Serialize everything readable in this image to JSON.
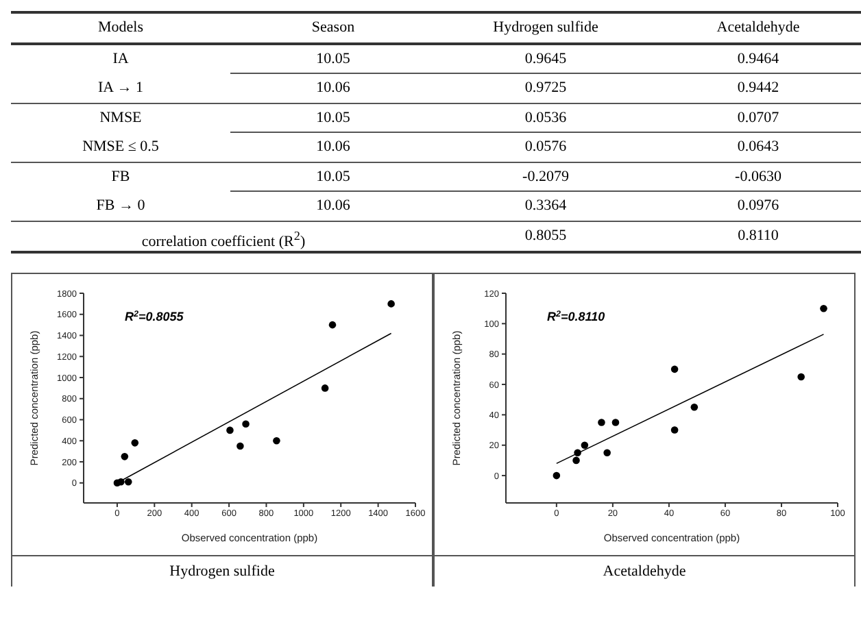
{
  "chart_data": [
    {
      "type": "other",
      "annotations": [
        "Models",
        "Season",
        "Hydrogen sulfide",
        "Acetaldehyde",
        "IA",
        "10.05",
        "0.9645",
        "0.9464",
        "IA → 1",
        "10.06",
        "0.9725",
        "0.9442",
        "NMSE",
        "10.05",
        "0.0536",
        "0.0707",
        "NMSE ≤ 0.5",
        "10.06",
        "0.0576",
        "0.0643",
        "FB",
        "10.05",
        "-0.2079",
        "-0.0630",
        "FB → 0",
        "10.06",
        "0.3364",
        "0.0976",
        "correlation coefficient (R$^{2}$)",
        "0.8055",
        "0.8110"
      ]
    },
    {
      "type": "scatter",
      "title": "Hydrogen sulfide",
      "xlabel": "Observed concentration (ppb)",
      "ylabel": "Predicted concentration (ppb)",
      "annotations": [
        "R$^{2}$=0.8055"
      ],
      "xlim": [
        -180,
        1600
      ],
      "xticks": [
        0,
        200,
        400,
        600,
        800,
        1000,
        1200,
        1400,
        1600
      ],
      "ylim": [
        -190,
        1800
      ],
      "yticks": [
        0,
        200,
        400,
        600,
        800,
        1000,
        1200,
        1400,
        1600,
        1800
      ],
      "series": [
        {
          "type": "scatter",
          "marker": "circle",
          "color": "#000000",
          "x": [
            0,
            20,
            40,
            60,
            95,
            605,
            660,
            690,
            855,
            1115,
            1155,
            1470
          ],
          "values": [
            0,
            10,
            250,
            10,
            380,
            500,
            350,
            560,
            400,
            900,
            1500,
            1700
          ]
        },
        {
          "type": "line",
          "marker": "none",
          "color": "#000000",
          "x": [
            0,
            1470
          ],
          "values": [
            0,
            1420
          ]
        }
      ]
    },
    {
      "type": "scatter",
      "title": "Acetaldehyde",
      "xlabel": "Observed concentration (ppb)",
      "ylabel": "Predicted concentration (ppb)",
      "annotations": [
        "R$^{2}$=0.8110"
      ],
      "xlim": [
        -18,
        100
      ],
      "xticks": [
        0,
        20,
        40,
        60,
        80,
        100
      ],
      "ylim": [
        -18,
        120
      ],
      "yticks": [
        0,
        20,
        40,
        60,
        80,
        100,
        120
      ],
      "series": [
        {
          "type": "scatter",
          "marker": "circle",
          "color": "#000000",
          "x": [
            0,
            7,
            7.5,
            10,
            16,
            18,
            21,
            42,
            42,
            49,
            87,
            95
          ],
          "values": [
            0,
            10,
            15,
            20,
            35,
            15,
            35,
            70,
            30,
            45,
            65,
            110
          ]
        },
        {
          "type": "line",
          "marker": "none",
          "color": "#000000",
          "x": [
            0,
            95
          ],
          "values": [
            8,
            93
          ]
        }
      ]
    }
  ]
}
